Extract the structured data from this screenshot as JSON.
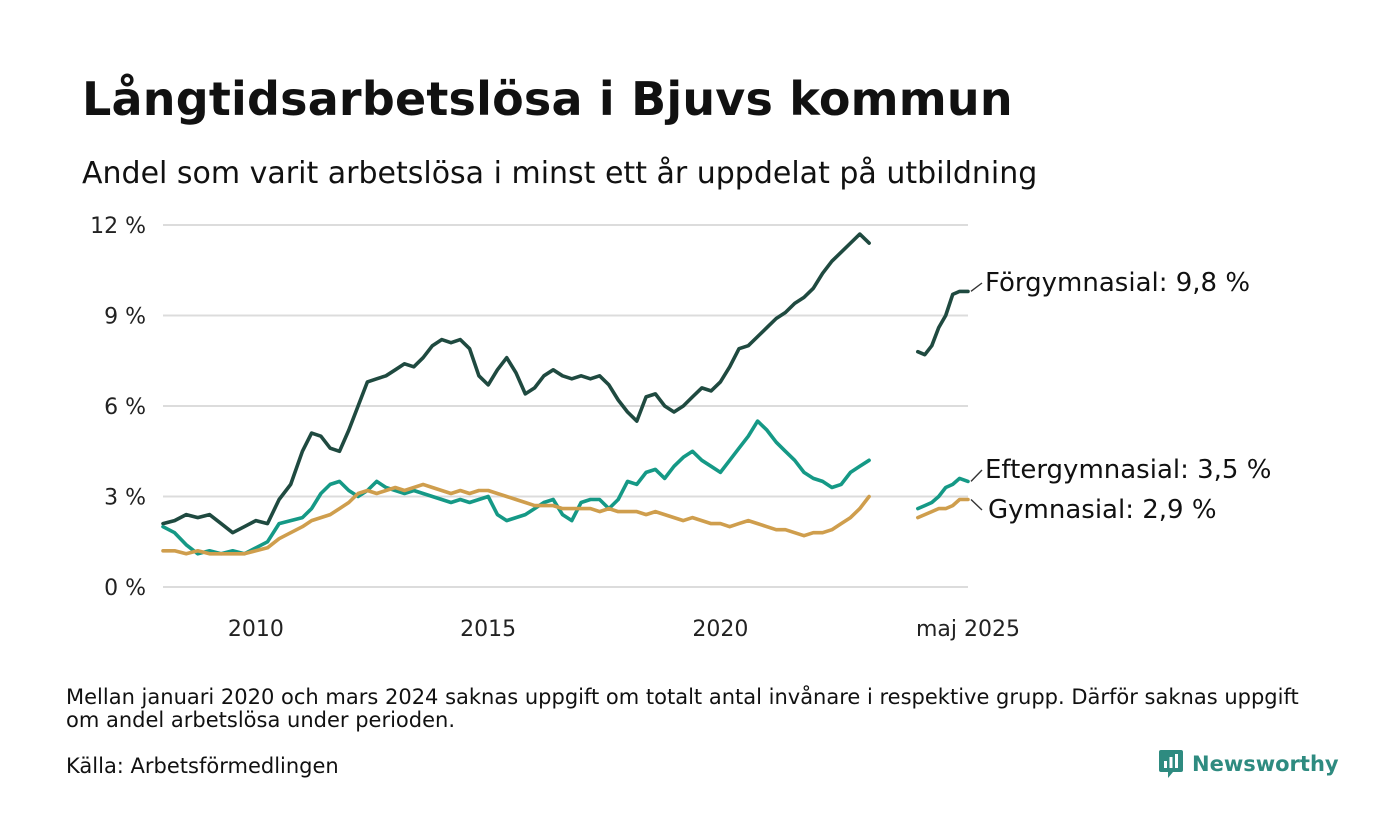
{
  "title": "Långtidsarbetslösa i Bjuvs kommun",
  "subtitle": "Andel som varit arbetslösa i minst ett år uppdelat på utbildning",
  "note": "Mellan januari 2020 och mars 2024 saknas uppgift om totalt antal invånare i respektive grupp. Därför saknas uppgift om andel arbetslösa under perioden.",
  "source": "Källa: Arbetsförmedlingen",
  "brand": {
    "name": "Newsworthy",
    "icon": "newsworthy-logo-icon",
    "color": "#2e8b80"
  },
  "chart_data": {
    "type": "line",
    "title": "Långtidsarbetslösa i Bjuvs kommun",
    "subtitle": "Andel som varit arbetslösa i minst ett år uppdelat på utbildning",
    "x_unit": "år",
    "x_ticks": [
      {
        "value": 2010,
        "label": "2010"
      },
      {
        "value": 2015,
        "label": "2015"
      },
      {
        "value": 2020,
        "label": "2020"
      },
      {
        "value": 2025.33,
        "label": "maj 2025"
      }
    ],
    "xlim": [
      2008.0,
      2025.33
    ],
    "ylim": [
      0,
      12
    ],
    "y_ticks": [
      {
        "value": 0,
        "label": "0 %"
      },
      {
        "value": 3,
        "label": "3 %"
      },
      {
        "value": 6,
        "label": "6 %"
      },
      {
        "value": 9,
        "label": "9 %"
      },
      {
        "value": 12,
        "label": "12 %"
      }
    ],
    "grid": "horizontal",
    "legend": "direct labels at line ends",
    "series": [
      {
        "name": "Förgymnasial",
        "end_label": "Förgymnasial: 9,8 %",
        "color": "#1f4a40",
        "segments": [
          [
            [
              2008.0,
              2.1
            ],
            [
              2008.25,
              2.2
            ],
            [
              2008.5,
              2.4
            ],
            [
              2008.75,
              2.3
            ],
            [
              2009.0,
              2.4
            ],
            [
              2009.25,
              2.1
            ],
            [
              2009.5,
              1.8
            ],
            [
              2009.75,
              2.0
            ],
            [
              2010.0,
              2.2
            ],
            [
              2010.25,
              2.1
            ],
            [
              2010.5,
              2.9
            ],
            [
              2010.75,
              3.4
            ],
            [
              2011.0,
              4.5
            ],
            [
              2011.2,
              5.1
            ],
            [
              2011.4,
              5.0
            ],
            [
              2011.6,
              4.6
            ],
            [
              2011.8,
              4.5
            ],
            [
              2012.0,
              5.2
            ],
            [
              2012.2,
              6.0
            ],
            [
              2012.4,
              6.8
            ],
            [
              2012.6,
              6.9
            ],
            [
              2012.8,
              7.0
            ],
            [
              2013.0,
              7.2
            ],
            [
              2013.2,
              7.4
            ],
            [
              2013.4,
              7.3
            ],
            [
              2013.6,
              7.6
            ],
            [
              2013.8,
              8.0
            ],
            [
              2014.0,
              8.2
            ],
            [
              2014.2,
              8.1
            ],
            [
              2014.4,
              8.2
            ],
            [
              2014.6,
              7.9
            ],
            [
              2014.8,
              7.0
            ],
            [
              2015.0,
              6.7
            ],
            [
              2015.2,
              7.2
            ],
            [
              2015.4,
              7.6
            ],
            [
              2015.6,
              7.1
            ],
            [
              2015.8,
              6.4
            ],
            [
              2016.0,
              6.6
            ],
            [
              2016.2,
              7.0
            ],
            [
              2016.4,
              7.2
            ],
            [
              2016.6,
              7.0
            ],
            [
              2016.8,
              6.9
            ],
            [
              2017.0,
              7.0
            ],
            [
              2017.2,
              6.9
            ],
            [
              2017.4,
              7.0
            ],
            [
              2017.6,
              6.7
            ],
            [
              2017.8,
              6.2
            ],
            [
              2018.0,
              5.8
            ],
            [
              2018.2,
              5.5
            ],
            [
              2018.4,
              6.3
            ],
            [
              2018.6,
              6.4
            ],
            [
              2018.8,
              6.0
            ],
            [
              2019.0,
              5.8
            ],
            [
              2019.2,
              6.0
            ],
            [
              2019.4,
              6.3
            ],
            [
              2019.6,
              6.6
            ],
            [
              2019.8,
              6.5
            ],
            [
              2020.0,
              6.8
            ],
            [
              2020.2,
              7.3
            ],
            [
              2020.4,
              7.9
            ],
            [
              2020.6,
              8.0
            ],
            [
              2020.8,
              8.3
            ],
            [
              2021.0,
              8.6
            ],
            [
              2021.2,
              8.9
            ],
            [
              2021.4,
              9.1
            ],
            [
              2021.6,
              9.4
            ],
            [
              2021.8,
              9.6
            ],
            [
              2022.0,
              9.9
            ],
            [
              2022.2,
              10.4
            ],
            [
              2022.4,
              10.8
            ],
            [
              2022.6,
              11.1
            ],
            [
              2022.8,
              11.4
            ],
            [
              2023.0,
              11.7
            ],
            [
              2023.2,
              11.4
            ]
          ],
          [
            [
              2024.25,
              7.8
            ],
            [
              2024.4,
              7.7
            ],
            [
              2024.55,
              8.0
            ],
            [
              2024.7,
              8.6
            ],
            [
              2024.85,
              9.0
            ],
            [
              2025.0,
              9.7
            ],
            [
              2025.15,
              9.8
            ],
            [
              2025.33,
              9.8
            ]
          ]
        ]
      },
      {
        "name": "Eftergymnasial",
        "end_label": "Eftergymnasial: 3,5 %",
        "color": "#159986",
        "segments": [
          [
            [
              2008.0,
              2.0
            ],
            [
              2008.25,
              1.8
            ],
            [
              2008.5,
              1.4
            ],
            [
              2008.75,
              1.1
            ],
            [
              2009.0,
              1.2
            ],
            [
              2009.25,
              1.1
            ],
            [
              2009.5,
              1.2
            ],
            [
              2009.75,
              1.1
            ],
            [
              2010.0,
              1.3
            ],
            [
              2010.25,
              1.5
            ],
            [
              2010.5,
              2.1
            ],
            [
              2010.75,
              2.2
            ],
            [
              2011.0,
              2.3
            ],
            [
              2011.2,
              2.6
            ],
            [
              2011.4,
              3.1
            ],
            [
              2011.6,
              3.4
            ],
            [
              2011.8,
              3.5
            ],
            [
              2012.0,
              3.2
            ],
            [
              2012.2,
              3.0
            ],
            [
              2012.4,
              3.2
            ],
            [
              2012.6,
              3.5
            ],
            [
              2012.8,
              3.3
            ],
            [
              2013.0,
              3.2
            ],
            [
              2013.2,
              3.1
            ],
            [
              2013.4,
              3.2
            ],
            [
              2013.6,
              3.1
            ],
            [
              2013.8,
              3.0
            ],
            [
              2014.0,
              2.9
            ],
            [
              2014.2,
              2.8
            ],
            [
              2014.4,
              2.9
            ],
            [
              2014.6,
              2.8
            ],
            [
              2014.8,
              2.9
            ],
            [
              2015.0,
              3.0
            ],
            [
              2015.2,
              2.4
            ],
            [
              2015.4,
              2.2
            ],
            [
              2015.6,
              2.3
            ],
            [
              2015.8,
              2.4
            ],
            [
              2016.0,
              2.6
            ],
            [
              2016.2,
              2.8
            ],
            [
              2016.4,
              2.9
            ],
            [
              2016.6,
              2.4
            ],
            [
              2016.8,
              2.2
            ],
            [
              2017.0,
              2.8
            ],
            [
              2017.2,
              2.9
            ],
            [
              2017.4,
              2.9
            ],
            [
              2017.6,
              2.6
            ],
            [
              2017.8,
              2.9
            ],
            [
              2018.0,
              3.5
            ],
            [
              2018.2,
              3.4
            ],
            [
              2018.4,
              3.8
            ],
            [
              2018.6,
              3.9
            ],
            [
              2018.8,
              3.6
            ],
            [
              2019.0,
              4.0
            ],
            [
              2019.2,
              4.3
            ],
            [
              2019.4,
              4.5
            ],
            [
              2019.6,
              4.2
            ],
            [
              2019.8,
              4.0
            ],
            [
              2020.0,
              3.8
            ],
            [
              2020.2,
              4.2
            ],
            [
              2020.4,
              4.6
            ],
            [
              2020.6,
              5.0
            ],
            [
              2020.8,
              5.5
            ],
            [
              2021.0,
              5.2
            ],
            [
              2021.2,
              4.8
            ],
            [
              2021.4,
              4.5
            ],
            [
              2021.6,
              4.2
            ],
            [
              2021.8,
              3.8
            ],
            [
              2022.0,
              3.6
            ],
            [
              2022.2,
              3.5
            ],
            [
              2022.4,
              3.3
            ],
            [
              2022.6,
              3.4
            ],
            [
              2022.8,
              3.8
            ],
            [
              2023.0,
              4.0
            ],
            [
              2023.2,
              4.2
            ]
          ],
          [
            [
              2024.25,
              2.6
            ],
            [
              2024.4,
              2.7
            ],
            [
              2024.55,
              2.8
            ],
            [
              2024.7,
              3.0
            ],
            [
              2024.85,
              3.3
            ],
            [
              2025.0,
              3.4
            ],
            [
              2025.15,
              3.6
            ],
            [
              2025.33,
              3.5
            ]
          ]
        ]
      },
      {
        "name": "Gymnasial",
        "end_label": "Gymnasial: 2,9 %",
        "color": "#cf9e4d",
        "segments": [
          [
            [
              2008.0,
              1.2
            ],
            [
              2008.25,
              1.2
            ],
            [
              2008.5,
              1.1
            ],
            [
              2008.75,
              1.2
            ],
            [
              2009.0,
              1.1
            ],
            [
              2009.25,
              1.1
            ],
            [
              2009.5,
              1.1
            ],
            [
              2009.75,
              1.1
            ],
            [
              2010.0,
              1.2
            ],
            [
              2010.25,
              1.3
            ],
            [
              2010.5,
              1.6
            ],
            [
              2010.75,
              1.8
            ],
            [
              2011.0,
              2.0
            ],
            [
              2011.2,
              2.2
            ],
            [
              2011.4,
              2.3
            ],
            [
              2011.6,
              2.4
            ],
            [
              2011.8,
              2.6
            ],
            [
              2012.0,
              2.8
            ],
            [
              2012.2,
              3.1
            ],
            [
              2012.4,
              3.2
            ],
            [
              2012.6,
              3.1
            ],
            [
              2012.8,
              3.2
            ],
            [
              2013.0,
              3.3
            ],
            [
              2013.2,
              3.2
            ],
            [
              2013.4,
              3.3
            ],
            [
              2013.6,
              3.4
            ],
            [
              2013.8,
              3.3
            ],
            [
              2014.0,
              3.2
            ],
            [
              2014.2,
              3.1
            ],
            [
              2014.4,
              3.2
            ],
            [
              2014.6,
              3.1
            ],
            [
              2014.8,
              3.2
            ],
            [
              2015.0,
              3.2
            ],
            [
              2015.2,
              3.1
            ],
            [
              2015.4,
              3.0
            ],
            [
              2015.6,
              2.9
            ],
            [
              2015.8,
              2.8
            ],
            [
              2016.0,
              2.7
            ],
            [
              2016.2,
              2.7
            ],
            [
              2016.4,
              2.7
            ],
            [
              2016.6,
              2.6
            ],
            [
              2016.8,
              2.6
            ],
            [
              2017.0,
              2.6
            ],
            [
              2017.2,
              2.6
            ],
            [
              2017.4,
              2.5
            ],
            [
              2017.6,
              2.6
            ],
            [
              2017.8,
              2.5
            ],
            [
              2018.0,
              2.5
            ],
            [
              2018.2,
              2.5
            ],
            [
              2018.4,
              2.4
            ],
            [
              2018.6,
              2.5
            ],
            [
              2018.8,
              2.4
            ],
            [
              2019.0,
              2.3
            ],
            [
              2019.2,
              2.2
            ],
            [
              2019.4,
              2.3
            ],
            [
              2019.6,
              2.2
            ],
            [
              2019.8,
              2.1
            ],
            [
              2020.0,
              2.1
            ],
            [
              2020.2,
              2.0
            ],
            [
              2020.4,
              2.1
            ],
            [
              2020.6,
              2.2
            ],
            [
              2020.8,
              2.1
            ],
            [
              2021.0,
              2.0
            ],
            [
              2021.2,
              1.9
            ],
            [
              2021.4,
              1.9
            ],
            [
              2021.6,
              1.8
            ],
            [
              2021.8,
              1.7
            ],
            [
              2022.0,
              1.8
            ],
            [
              2022.2,
              1.8
            ],
            [
              2022.4,
              1.9
            ],
            [
              2022.6,
              2.1
            ],
            [
              2022.8,
              2.3
            ],
            [
              2023.0,
              2.6
            ],
            [
              2023.2,
              3.0
            ]
          ],
          [
            [
              2024.25,
              2.3
            ],
            [
              2024.4,
              2.4
            ],
            [
              2024.55,
              2.5
            ],
            [
              2024.7,
              2.6
            ],
            [
              2024.85,
              2.6
            ],
            [
              2025.0,
              2.7
            ],
            [
              2025.15,
              2.9
            ],
            [
              2025.33,
              2.9
            ]
          ]
        ]
      }
    ]
  }
}
